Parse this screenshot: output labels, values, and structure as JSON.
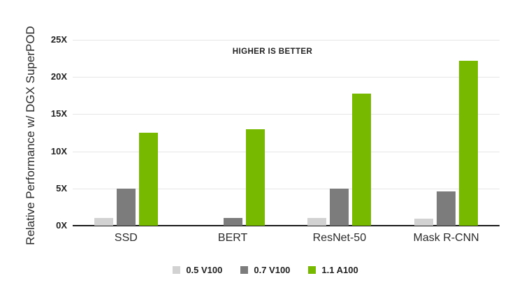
{
  "colors": {
    "green": "#76B900",
    "dark_gray": "#7C7C7C",
    "light_gray": "#D2D2D2",
    "gridline": "#E6E6E6",
    "axis_line": "#1A1A1A",
    "text": "#2B2B2B"
  },
  "chart_data": {
    "type": "bar",
    "title": "",
    "xlabel": "",
    "ylabel": "Relative Performance w/ DGX SuperPOD",
    "annotation": "HIGHER IS BETTER",
    "categories": [
      "SSD",
      "BERT",
      "ResNet-50",
      "Mask R-CNN"
    ],
    "series": [
      {
        "name": "0.5 V100",
        "color": "#D2D2D2",
        "values": [
          1,
          0,
          1,
          0.9
        ]
      },
      {
        "name": "0.7 V100",
        "color": "#7C7C7C",
        "values": [
          5,
          1,
          5,
          4.6
        ]
      },
      {
        "name": "1.1 A100",
        "color": "#76B900",
        "values": [
          12.5,
          13,
          17.8,
          22.2
        ]
      }
    ],
    "ylim": [
      0,
      25
    ],
    "ytick_step": 5,
    "ytick_suffix": "X",
    "yticks": [
      "0X",
      "5X",
      "10X",
      "15X",
      "20X",
      "25X"
    ],
    "grid": "horizontal",
    "legend_position": "bottom"
  }
}
